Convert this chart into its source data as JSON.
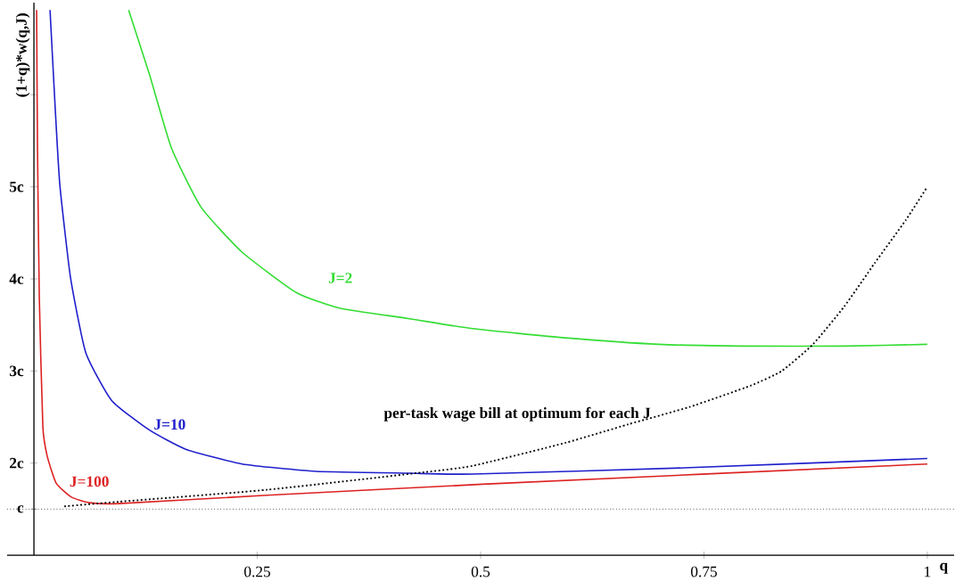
{
  "chart_data": {
    "type": "line",
    "xlabel": "q",
    "ylabel": "(1+q)*w(q,J)",
    "xlim": [
      -0.03,
      1.03
    ],
    "ylim": [
      1,
      7
    ],
    "xticks": [
      0.25,
      0.5,
      0.75,
      1
    ],
    "yticks": [
      {
        "value": 1.5,
        "label": "c"
      },
      {
        "value": 2,
        "label": "2c"
      },
      {
        "value": 3,
        "label": "3c"
      },
      {
        "value": 4,
        "label": "4c"
      },
      {
        "value": 5,
        "label": "5c"
      },
      {
        "value": 6,
        "label": null
      }
    ],
    "ref_lines": [
      {
        "axis": "y",
        "value": 1.5,
        "color": "#000000",
        "line_style": "dotted"
      }
    ],
    "series": [
      {
        "name": "J=2",
        "color": "#33dd33",
        "x": [
          0.106,
          0.129,
          0.154,
          0.187,
          0.233,
          0.294,
          0.343,
          0.419,
          0.491,
          0.595,
          0.699,
          0.802,
          0.907,
          1.0
        ],
        "values": [
          6.92,
          6.23,
          5.42,
          4.78,
          4.29,
          3.85,
          3.68,
          3.57,
          3.46,
          3.36,
          3.29,
          3.27,
          3.27,
          3.29
        ]
      },
      {
        "name": "J=10",
        "color": "#1f1fcc",
        "x": [
          0.018,
          0.024,
          0.029,
          0.041,
          0.058,
          0.087,
          0.129,
          0.17,
          0.233,
          0.316,
          0.419,
          0.491,
          0.734,
          1.0
        ],
        "values": [
          6.92,
          5.82,
          5.02,
          4.01,
          3.2,
          2.68,
          2.36,
          2.15,
          1.99,
          1.91,
          1.89,
          1.88,
          1.95,
          2.05
        ]
      },
      {
        "name": "J=100",
        "color": "#dd2222",
        "x": [
          0.003,
          0.004,
          0.006,
          0.01,
          0.015,
          0.025,
          0.042,
          0.062,
          0.095,
          0.261,
          0.502,
          1.0
        ],
        "values": [
          6.92,
          5.42,
          3.8,
          2.39,
          2.07,
          1.78,
          1.63,
          1.57,
          1.56,
          1.65,
          1.77,
          1.99
        ]
      },
      {
        "name": "per-task wage bill at optimum for each J",
        "color": "#000000",
        "line_style": "dotted",
        "x": [
          0.034,
          0.095,
          0.261,
          0.436,
          0.491,
          0.595,
          0.665,
          0.734,
          0.802,
          0.837,
          0.872,
          0.907,
          0.941,
          0.976,
          1.0
        ],
        "values": [
          1.53,
          1.58,
          1.71,
          1.9,
          1.97,
          2.22,
          2.42,
          2.61,
          2.84,
          3.0,
          3.29,
          3.7,
          4.17,
          4.64,
          5.0
        ]
      }
    ]
  }
}
